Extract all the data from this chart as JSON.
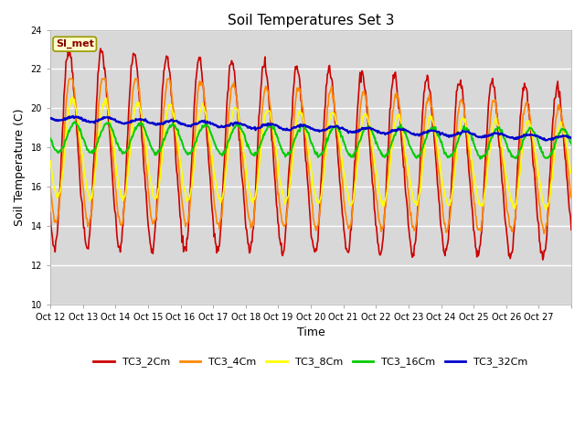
{
  "title": "Soil Temperatures Set 3",
  "xlabel": "Time",
  "ylabel": "Soil Temperature (C)",
  "ylim": [
    10,
    24
  ],
  "yticks": [
    10,
    12,
    14,
    16,
    18,
    20,
    22,
    24
  ],
  "x_tick_labels": [
    "Oct 12",
    "Oct 13",
    "Oct 14",
    "Oct 15",
    "Oct 16",
    "Oct 17",
    "Oct 18",
    "Oct 19",
    "Oct 20",
    "Oct 21",
    "Oct 22",
    "Oct 23",
    "Oct 24",
    "Oct 25",
    "Oct 26",
    "Oct 27"
  ],
  "annotation_text": "SI_met",
  "annotation_bg": "#ffffcc",
  "annotation_border": "#999900",
  "series_colors": {
    "TC3_2Cm": "#cc0000",
    "TC3_4Cm": "#ff8800",
    "TC3_8Cm": "#ffff00",
    "TC3_16Cm": "#00cc00",
    "TC3_32Cm": "#0000cc"
  },
  "fig_bg": "#ffffff",
  "plot_bg": "#d8d8d8",
  "grid_color": "#ffffff",
  "n_days": 16,
  "pts_per_day": 48,
  "title_fontsize": 11,
  "axis_label_fontsize": 9,
  "tick_fontsize": 7
}
